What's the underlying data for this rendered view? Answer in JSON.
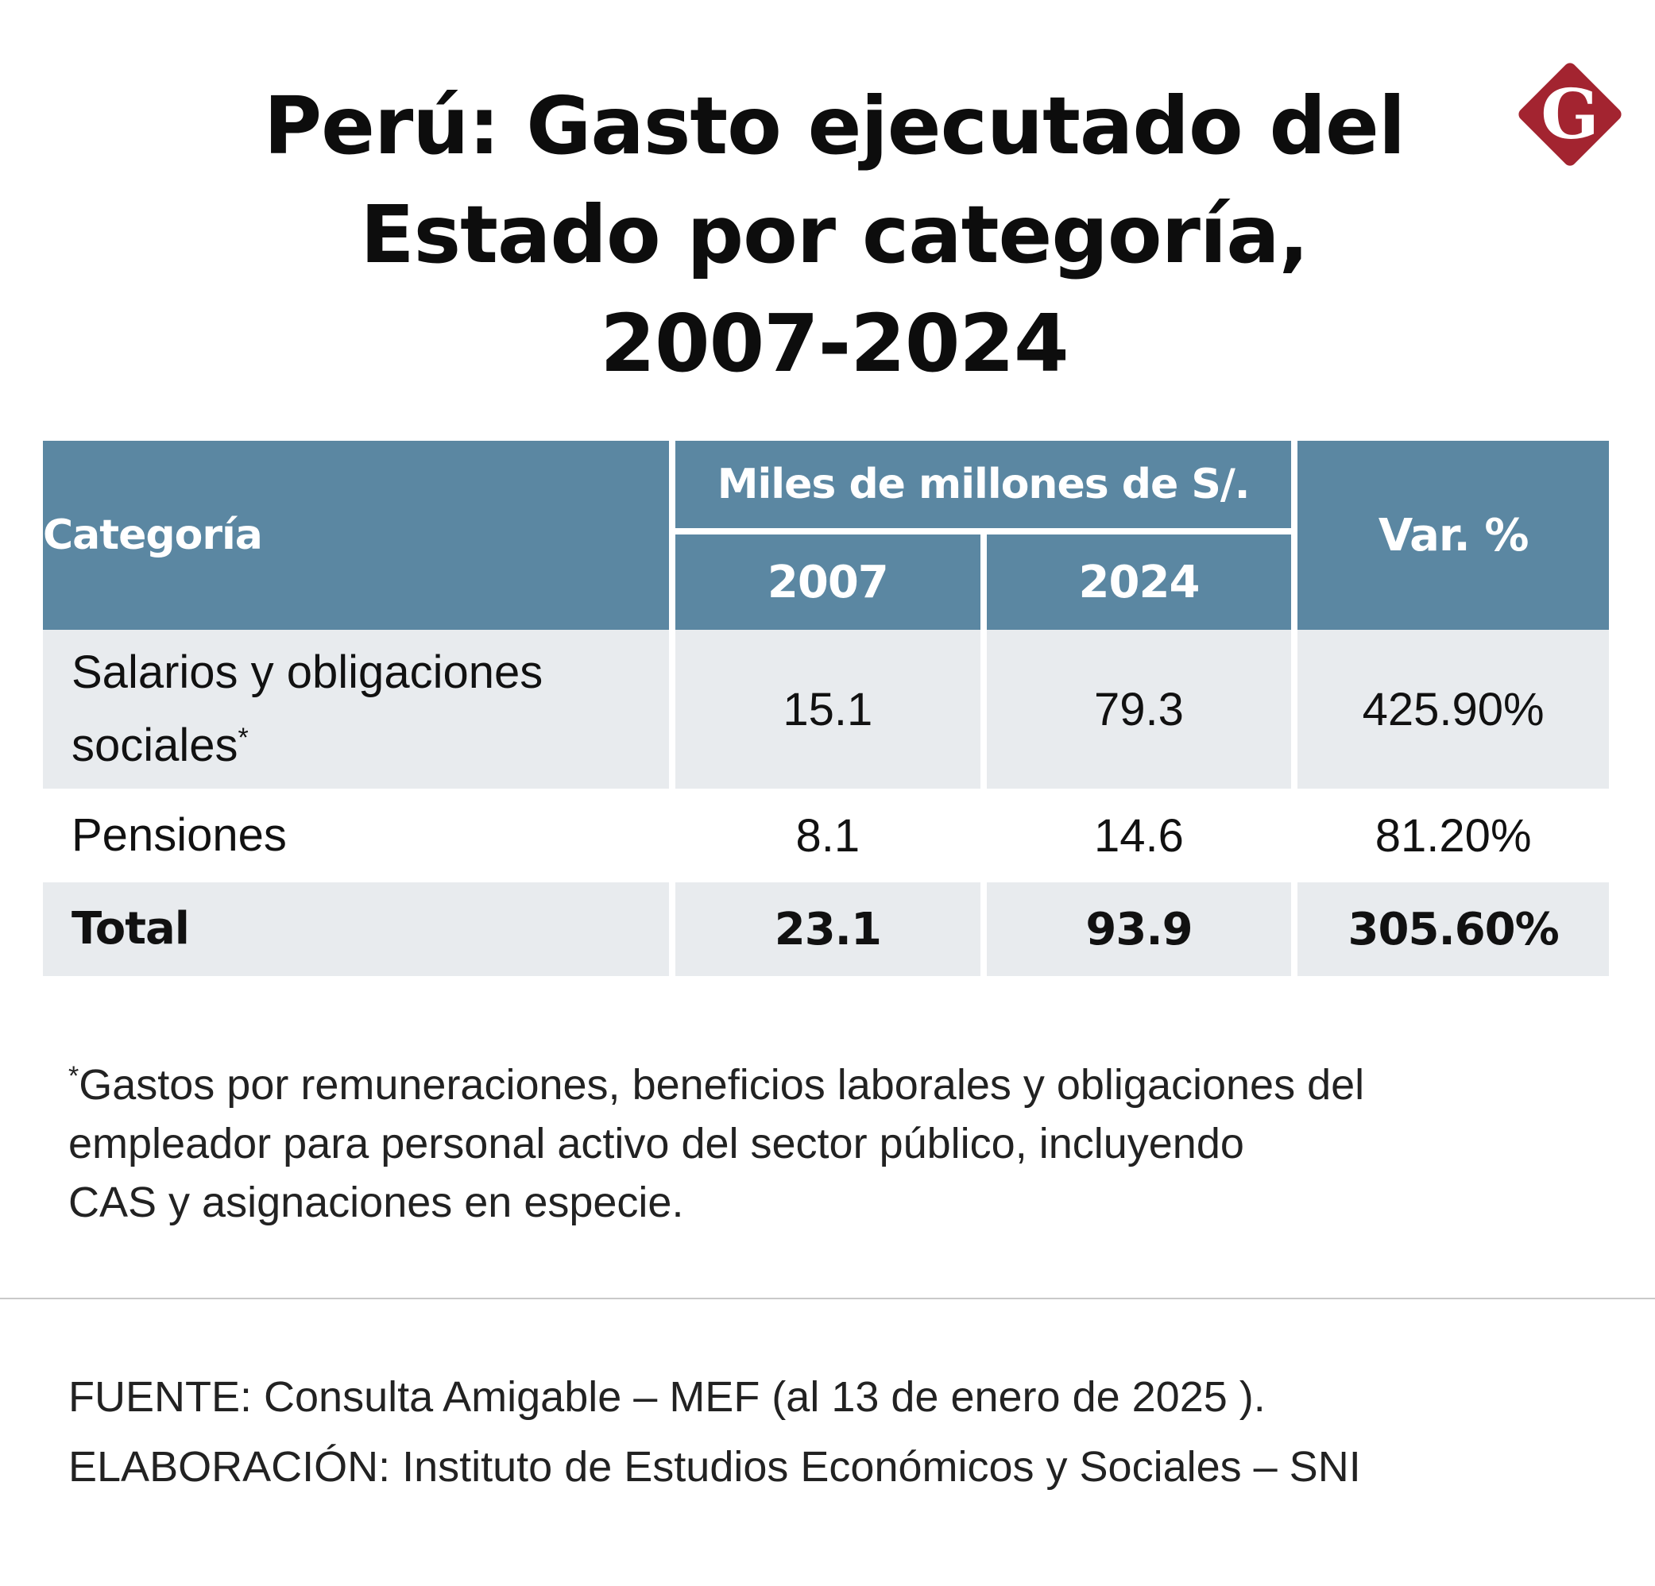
{
  "title": "Perú: Gasto ejecutado del\nEstado por categoría,\n2007-2024",
  "logo": {
    "icon": "diamond-g-logo",
    "letter": "G",
    "color": "#a32430"
  },
  "table": {
    "header": {
      "category": "Categoría",
      "units": "Miles de millones de S/.",
      "year_a": "2007",
      "year_b": "2024",
      "var": "Var. %"
    },
    "rows": [
      {
        "category": "Salarios y obligaciones\nsociales",
        "asterisk": "*",
        "y2007": "15.1",
        "y2024": "79.3",
        "var": "425.90%"
      },
      {
        "category": "Pensiones",
        "y2007": "8.1",
        "y2024": "14.6",
        "var": "81.20%"
      },
      {
        "category": "Total",
        "y2007": "23.1",
        "y2024": "93.9",
        "var": "305.60%"
      }
    ]
  },
  "footnote": {
    "asterisk": "*",
    "text": "Gastos por remuneraciones, beneficios laborales y obligaciones del\nempleador para personal activo del sector público, incluyendo\nCAS y asignaciones en especie."
  },
  "source": {
    "fuente": "FUENTE: Consulta Amigable – MEF (al 13 de enero de 2025 ).",
    "elaboracion": "ELABORACIÓN: Instituto de Estudios Económicos y Sociales – SNI"
  },
  "colors": {
    "header_bg": "#5b87a2",
    "row_shade": "#e8ebee",
    "divider": "#c9c9c9"
  },
  "chart_data": {
    "type": "table",
    "title": "Perú: Gasto ejecutado del Estado por categoría, 2007-2024",
    "columns": [
      "Categoría",
      "2007",
      "2024",
      "Var. %"
    ],
    "unit": "Miles de millones de S/.",
    "rows": [
      {
        "category": "Salarios y obligaciones sociales",
        "2007": 15.1,
        "2024": 79.3,
        "var_pct": 425.9
      },
      {
        "category": "Pensiones",
        "2007": 8.1,
        "2024": 14.6,
        "var_pct": 81.2
      },
      {
        "category": "Total",
        "2007": 23.1,
        "2024": 93.9,
        "var_pct": 305.6
      }
    ]
  }
}
